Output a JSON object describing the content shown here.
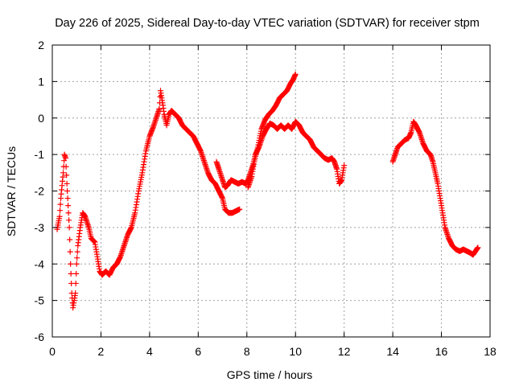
{
  "chart_data": {
    "type": "scatter",
    "title": "Day 226 of 2025, Sidereal Day-to-day VTEC variation (SDTVAR) for receiver stpm",
    "xlabel": "GPS time / hours",
    "ylabel": "SDTVAR / TECUs",
    "xlim": [
      0,
      18
    ],
    "ylim": [
      -6,
      2
    ],
    "xticks": [
      "0",
      "2",
      "4",
      "6",
      "8",
      "10",
      "12",
      "14",
      "16",
      "18"
    ],
    "yticks": [
      "-6",
      "-5",
      "-4",
      "-3",
      "-2",
      "-1",
      "0",
      "1",
      "2"
    ],
    "grid": true,
    "marker": "+",
    "marker_color": "#ff0000",
    "series": [
      {
        "name": "SDTVAR",
        "segments": [
          [
            [
              0.2,
              -3.05
            ],
            [
              0.3,
              -2.7
            ],
            [
              0.35,
              -2.2
            ],
            [
              0.45,
              -1.5
            ],
            [
              0.5,
              -1.0
            ],
            [
              0.55,
              -1.1
            ],
            [
              0.6,
              -1.8
            ],
            [
              0.7,
              -3.0
            ],
            [
              0.75,
              -4.0
            ],
            [
              0.8,
              -4.8
            ],
            [
              0.85,
              -5.2
            ],
            [
              0.95,
              -4.8
            ],
            [
              1.0,
              -4.0
            ],
            [
              1.05,
              -3.5
            ],
            [
              1.15,
              -3.0
            ],
            [
              1.25,
              -2.6
            ],
            [
              1.35,
              -2.7
            ],
            [
              1.5,
              -3.0
            ],
            [
              1.6,
              -3.3
            ],
            [
              1.75,
              -3.4
            ],
            [
              1.85,
              -3.8
            ],
            [
              1.95,
              -4.2
            ],
            [
              2.05,
              -4.3
            ],
            [
              2.2,
              -4.2
            ],
            [
              2.35,
              -4.3
            ],
            [
              2.5,
              -4.1
            ],
            [
              2.65,
              -4.0
            ],
            [
              2.8,
              -3.8
            ],
            [
              2.95,
              -3.5
            ],
            [
              3.1,
              -3.2
            ],
            [
              3.25,
              -3.0
            ],
            [
              3.4,
              -2.6
            ],
            [
              3.55,
              -2.0
            ],
            [
              3.7,
              -1.5
            ],
            [
              3.85,
              -0.9
            ],
            [
              4.0,
              -0.5
            ],
            [
              4.15,
              -0.25
            ],
            [
              4.3,
              0.05
            ],
            [
              4.4,
              0.25
            ],
            [
              4.45,
              0.75
            ],
            [
              4.55,
              0.35
            ],
            [
              4.6,
              0.1
            ],
            [
              4.7,
              -0.2
            ],
            [
              4.8,
              0.1
            ],
            [
              4.9,
              0.2
            ],
            [
              5.05,
              0.1
            ],
            [
              5.2,
              0.0
            ],
            [
              5.35,
              -0.2
            ],
            [
              5.5,
              -0.3
            ],
            [
              5.65,
              -0.4
            ],
            [
              5.8,
              -0.5
            ],
            [
              5.95,
              -0.7
            ],
            [
              6.1,
              -0.9
            ],
            [
              6.25,
              -1.2
            ],
            [
              6.4,
              -1.5
            ],
            [
              6.55,
              -1.7
            ],
            [
              6.7,
              -1.8
            ],
            [
              6.85,
              -2.0
            ],
            [
              7.0,
              -2.2
            ],
            [
              7.1,
              -2.5
            ],
            [
              7.25,
              -2.6
            ],
            [
              7.4,
              -2.6
            ],
            [
              7.55,
              -2.55
            ],
            [
              7.7,
              -2.5
            ]
          ],
          [
            [
              6.75,
              -1.2
            ],
            [
              6.85,
              -1.4
            ],
            [
              7.0,
              -1.7
            ],
            [
              7.1,
              -1.9
            ],
            [
              7.2,
              -1.85
            ],
            [
              7.35,
              -1.7
            ],
            [
              7.5,
              -1.75
            ],
            [
              7.65,
              -1.8
            ],
            [
              7.8,
              -1.75
            ],
            [
              7.95,
              -1.8
            ],
            [
              8.05,
              -1.7
            ],
            [
              8.15,
              -1.5
            ],
            [
              8.25,
              -1.3
            ],
            [
              8.35,
              -1.0
            ],
            [
              8.5,
              -0.8
            ],
            [
              8.65,
              -0.5
            ],
            [
              8.8,
              -0.3
            ],
            [
              8.95,
              -0.15
            ],
            [
              9.1,
              -0.2
            ],
            [
              9.25,
              -0.3
            ],
            [
              9.4,
              -0.2
            ],
            [
              9.55,
              -0.3
            ],
            [
              9.7,
              -0.2
            ],
            [
              9.85,
              -0.3
            ],
            [
              10.0,
              -0.1
            ],
            [
              10.15,
              -0.2
            ],
            [
              10.3,
              -0.4
            ],
            [
              10.45,
              -0.5
            ],
            [
              10.6,
              -0.6
            ],
            [
              10.75,
              -0.8
            ],
            [
              10.9,
              -0.9
            ],
            [
              11.05,
              -1.0
            ],
            [
              11.2,
              -1.1
            ],
            [
              11.35,
              -1.15
            ],
            [
              11.5,
              -1.1
            ],
            [
              11.6,
              -1.2
            ],
            [
              11.7,
              -1.4
            ],
            [
              11.8,
              -1.8
            ],
            [
              11.9,
              -1.7
            ],
            [
              12.0,
              -1.3
            ]
          ],
          [
            [
              8.05,
              -1.9
            ],
            [
              8.2,
              -1.6
            ],
            [
              8.3,
              -1.2
            ],
            [
              8.45,
              -0.8
            ],
            [
              8.6,
              -0.3
            ],
            [
              8.75,
              -0.05
            ],
            [
              8.9,
              0.1
            ],
            [
              9.05,
              0.2
            ],
            [
              9.2,
              0.35
            ],
            [
              9.35,
              0.55
            ],
            [
              9.5,
              0.65
            ],
            [
              9.65,
              0.75
            ],
            [
              9.8,
              0.95
            ],
            [
              9.9,
              1.05
            ],
            [
              10.0,
              1.2
            ]
          ],
          [
            [
              14.0,
              -1.2
            ],
            [
              14.1,
              -1.0
            ],
            [
              14.2,
              -0.8
            ],
            [
              14.35,
              -0.7
            ],
            [
              14.5,
              -0.6
            ],
            [
              14.65,
              -0.55
            ],
            [
              14.75,
              -0.4
            ],
            [
              14.85,
              -0.1
            ],
            [
              14.95,
              -0.2
            ],
            [
              15.1,
              -0.4
            ],
            [
              15.25,
              -0.7
            ],
            [
              15.4,
              -0.9
            ],
            [
              15.55,
              -1.0
            ],
            [
              15.65,
              -1.2
            ],
            [
              15.75,
              -1.5
            ],
            [
              15.85,
              -1.8
            ],
            [
              15.95,
              -2.2
            ],
            [
              16.05,
              -2.6
            ],
            [
              16.15,
              -3.0
            ],
            [
              16.3,
              -3.3
            ],
            [
              16.45,
              -3.5
            ],
            [
              16.6,
              -3.6
            ],
            [
              16.75,
              -3.65
            ],
            [
              16.9,
              -3.6
            ],
            [
              17.05,
              -3.65
            ],
            [
              17.2,
              -3.7
            ],
            [
              17.3,
              -3.75
            ],
            [
              17.45,
              -3.6
            ],
            [
              17.5,
              -3.55
            ]
          ]
        ]
      }
    ]
  }
}
